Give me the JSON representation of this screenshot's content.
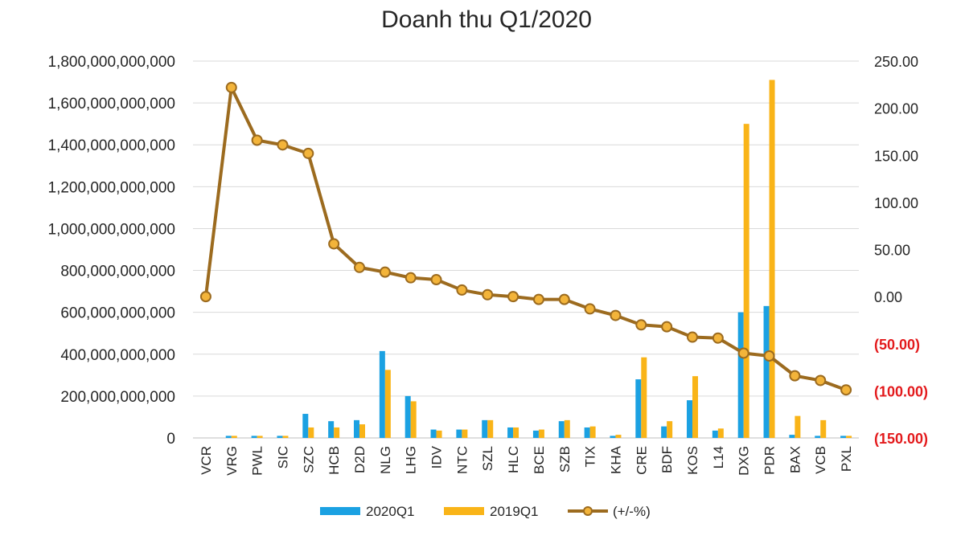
{
  "chart_data": {
    "type": "bar+line",
    "title": "Doanh thu Q1/2020",
    "categories": [
      "VCR",
      "VRG",
      "PWL",
      "SIC",
      "SZC",
      "HCB",
      "D2D",
      "NLG",
      "LHG",
      "IDV",
      "NTC",
      "SZL",
      "HLC",
      "BCE",
      "SZB",
      "TIX",
      "KHA",
      "CRE",
      "BDF",
      "KOS",
      "L14",
      "DXG",
      "PDR",
      "BAX",
      "VCB",
      "PXL"
    ],
    "y_axis": {
      "min": 0,
      "max": 1800000000000,
      "step": 200000000000,
      "tick_labels": [
        "0",
        "200,000,000,000",
        "400,000,000,000",
        "600,000,000,000",
        "800,000,000,000",
        "1,000,000,000,000",
        "1,200,000,000,000",
        "1,400,000,000,000",
        "1,600,000,000,000",
        "1,800,000,000,000"
      ]
    },
    "y2_axis": {
      "min": -150,
      "max": 250,
      "step": 50,
      "tick_labels": [
        "(150.00)",
        "(100.00)",
        "(50.00)",
        "0.00",
        "50.00",
        "100.00",
        "150.00",
        "200.00",
        "250.00"
      ]
    },
    "series": [
      {
        "name": "2020Q1",
        "kind": "bar",
        "color": "#1ba1e2",
        "values": [
          0,
          10000000000,
          10000000000,
          10000000000,
          115000000000,
          80000000000,
          85000000000,
          415000000000,
          200000000000,
          40000000000,
          40000000000,
          85000000000,
          50000000000,
          35000000000,
          80000000000,
          50000000000,
          10000000000,
          280000000000,
          55000000000,
          180000000000,
          35000000000,
          600000000000,
          630000000000,
          15000000000,
          10000000000,
          10000000000
        ]
      },
      {
        "name": "2019Q1",
        "kind": "bar",
        "color": "#f9b418",
        "values": [
          0,
          10000000000,
          10000000000,
          10000000000,
          50000000000,
          50000000000,
          65000000000,
          325000000000,
          175000000000,
          35000000000,
          40000000000,
          85000000000,
          50000000000,
          40000000000,
          85000000000,
          55000000000,
          15000000000,
          385000000000,
          80000000000,
          295000000000,
          45000000000,
          1500000000000,
          1710000000000,
          105000000000,
          85000000000,
          10000000000
        ]
      },
      {
        "name": "(+/-%)",
        "kind": "line",
        "axis": "secondary",
        "color": "#9c6b1f",
        "marker_color": "#f3b43a",
        "values": [
          0,
          222,
          166,
          161,
          152,
          56,
          31,
          26,
          20,
          18,
          7,
          2,
          0,
          -3,
          -3,
          -13,
          -20,
          -30,
          -32,
          -43,
          -44,
          -60,
          -63,
          -84,
          -89,
          -99
        ]
      }
    ],
    "legend": {
      "position": "bottom",
      "entries": [
        "2020Q1",
        "2019Q1",
        "(+/-%)"
      ]
    },
    "grid": true
  }
}
